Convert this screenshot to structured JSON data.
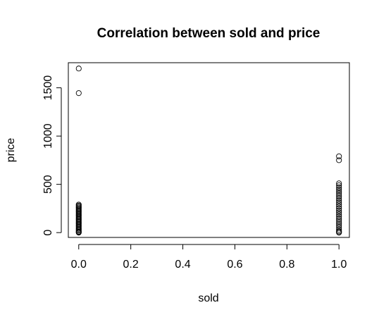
{
  "chart_data": {
    "type": "scatter",
    "title": "Correlation between sold and price",
    "xlabel": "sold",
    "ylabel": "price",
    "xlim": [
      -0.04,
      1.04
    ],
    "ylim": [
      -50,
      1760
    ],
    "xticks": [
      0.0,
      0.2,
      0.4,
      0.6,
      0.8,
      1.0
    ],
    "xtick_labels": [
      "0.0",
      "0.2",
      "0.4",
      "0.6",
      "0.8",
      "1.0"
    ],
    "yticks": [
      0,
      500,
      1000,
      1500
    ],
    "ytick_labels": [
      "0",
      "500",
      "1000",
      "1500"
    ],
    "grid": false,
    "legend": false,
    "series": [
      {
        "marker": "open-circle",
        "color": "#000000",
        "points": [
          [
            0,
            1700
          ],
          [
            0,
            1445
          ],
          [
            0,
            290
          ],
          [
            0,
            280
          ],
          [
            0,
            270
          ],
          [
            0,
            260
          ],
          [
            0,
            250
          ],
          [
            0,
            240
          ],
          [
            0,
            230
          ],
          [
            0,
            220
          ],
          [
            0,
            210
          ],
          [
            0,
            200
          ],
          [
            0,
            190
          ],
          [
            0,
            180
          ],
          [
            0,
            170
          ],
          [
            0,
            160
          ],
          [
            0,
            150
          ],
          [
            0,
            140
          ],
          [
            0,
            130
          ],
          [
            0,
            120
          ],
          [
            0,
            110
          ],
          [
            0,
            100
          ],
          [
            0,
            90
          ],
          [
            0,
            80
          ],
          [
            0,
            70
          ],
          [
            0,
            60
          ],
          [
            0,
            50
          ],
          [
            0,
            40
          ],
          [
            0,
            30
          ],
          [
            0,
            20
          ],
          [
            0,
            10
          ],
          [
            0,
            5
          ],
          [
            0,
            0
          ],
          [
            1,
            790
          ],
          [
            1,
            750
          ],
          [
            1,
            510
          ],
          [
            1,
            490
          ],
          [
            1,
            470
          ],
          [
            1,
            450
          ],
          [
            1,
            430
          ],
          [
            1,
            410
          ],
          [
            1,
            390
          ],
          [
            1,
            370
          ],
          [
            1,
            350
          ],
          [
            1,
            330
          ],
          [
            1,
            310
          ],
          [
            1,
            290
          ],
          [
            1,
            270
          ],
          [
            1,
            250
          ],
          [
            1,
            230
          ],
          [
            1,
            210
          ],
          [
            1,
            190
          ],
          [
            1,
            170
          ],
          [
            1,
            150
          ],
          [
            1,
            130
          ],
          [
            1,
            110
          ],
          [
            1,
            90
          ],
          [
            1,
            70
          ],
          [
            1,
            50
          ],
          [
            1,
            30
          ],
          [
            1,
            15
          ],
          [
            1,
            5
          ],
          [
            1,
            0
          ]
        ]
      }
    ]
  }
}
